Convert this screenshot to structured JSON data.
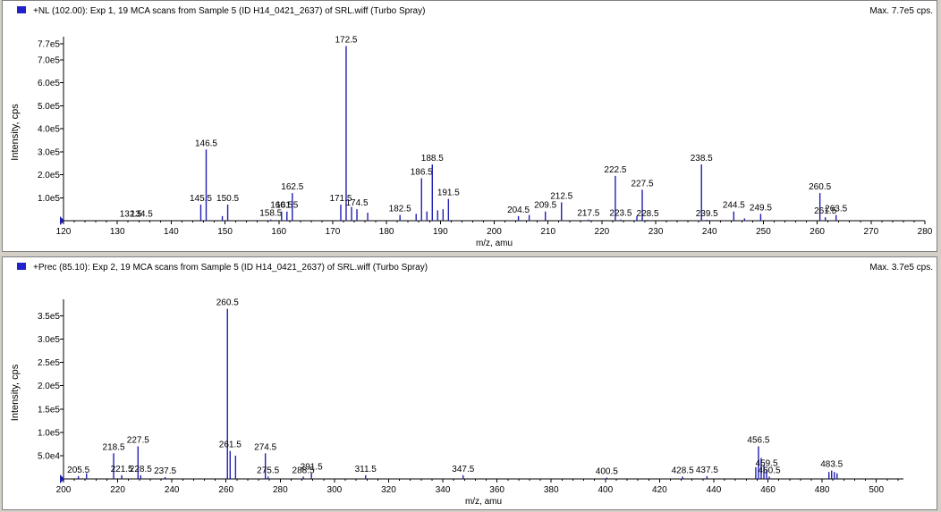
{
  "chart_data": [
    {
      "type": "bar",
      "title": "+NL (102.00): Exp 1, 19 MCA scans from Sample 5 (ID H14_0421_2637) of SRL.wiff (Turbo Spray)",
      "max_label": "Max. 7.7e5 cps.",
      "xlabel": "m/z, amu",
      "ylabel": "Intensity, cps",
      "xlim": [
        120,
        280
      ],
      "ylim": [
        0,
        770000
      ],
      "x_ticks": [
        120,
        130,
        140,
        150,
        160,
        170,
        180,
        190,
        200,
        210,
        220,
        230,
        240,
        250,
        260,
        270,
        280
      ],
      "y_ticks": [
        {
          "v": 100000,
          "t": "1.0e5"
        },
        {
          "v": 200000,
          "t": "2.0e5"
        },
        {
          "v": 300000,
          "t": "3.0e5"
        },
        {
          "v": 400000,
          "t": "4.0e5"
        },
        {
          "v": 500000,
          "t": "5.0e5"
        },
        {
          "v": 600000,
          "t": "6.0e5"
        },
        {
          "v": 700000,
          "t": "7.0e5"
        },
        {
          "v": 770000,
          "t": "7.7e5"
        }
      ],
      "peaks": [
        {
          "x": 132.5,
          "y": 2000,
          "label": "132.5"
        },
        {
          "x": 134.5,
          "y": 2000,
          "label": "134.5"
        },
        {
          "x": 145.5,
          "y": 70000,
          "label": "145.5"
        },
        {
          "x": 146.5,
          "y": 310000,
          "label": "146.5"
        },
        {
          "x": 149.5,
          "y": 20000
        },
        {
          "x": 150.5,
          "y": 70000,
          "label": "150.5"
        },
        {
          "x": 158.5,
          "y": 5000,
          "label": "158.5"
        },
        {
          "x": 160.5,
          "y": 40000,
          "label": "160.5"
        },
        {
          "x": 161.5,
          "y": 40000,
          "label": "161.5"
        },
        {
          "x": 162.5,
          "y": 120000,
          "label": "162.5"
        },
        {
          "x": 171.5,
          "y": 70000,
          "label": "171.5"
        },
        {
          "x": 172.5,
          "y": 760000,
          "label": "172.5"
        },
        {
          "x": 173.5,
          "y": 60000
        },
        {
          "x": 174.5,
          "y": 50000,
          "label": "174.5"
        },
        {
          "x": 176.5,
          "y": 35000
        },
        {
          "x": 182.5,
          "y": 25000,
          "label": "182.5"
        },
        {
          "x": 185.5,
          "y": 30000
        },
        {
          "x": 186.5,
          "y": 185000,
          "label": "186.5"
        },
        {
          "x": 187.5,
          "y": 40000
        },
        {
          "x": 188.5,
          "y": 245000,
          "label": "188.5"
        },
        {
          "x": 189.5,
          "y": 45000
        },
        {
          "x": 190.5,
          "y": 50000
        },
        {
          "x": 191.5,
          "y": 95000,
          "label": "191.5"
        },
        {
          "x": 204.5,
          "y": 20000,
          "label": "204.5"
        },
        {
          "x": 206.5,
          "y": 25000
        },
        {
          "x": 209.5,
          "y": 40000,
          "label": "209.5"
        },
        {
          "x": 212.5,
          "y": 80000,
          "label": "212.5"
        },
        {
          "x": 217.5,
          "y": 5000,
          "label": "217.5"
        },
        {
          "x": 222.5,
          "y": 195000,
          "label": "222.5"
        },
        {
          "x": 223.5,
          "y": 5000,
          "label": "223.5"
        },
        {
          "x": 226.5,
          "y": 20000
        },
        {
          "x": 227.5,
          "y": 135000,
          "label": "227.5"
        },
        {
          "x": 228.5,
          "y": 4000,
          "label": "228.5"
        },
        {
          "x": 238.5,
          "y": 245000,
          "label": "238.5"
        },
        {
          "x": 239.5,
          "y": 4000,
          "label": "239.5"
        },
        {
          "x": 244.5,
          "y": 40000,
          "label": "244.5"
        },
        {
          "x": 246.5,
          "y": 10000
        },
        {
          "x": 249.5,
          "y": 30000,
          "label": "249.5"
        },
        {
          "x": 260.5,
          "y": 120000,
          "label": "260.5"
        },
        {
          "x": 261.5,
          "y": 15000,
          "label": "261.5"
        },
        {
          "x": 263.5,
          "y": 25000,
          "label": "263.5"
        }
      ]
    },
    {
      "type": "bar",
      "title": "+Prec (85.10): Exp 2, 19 MCA scans from Sample 5 (ID H14_0421_2637) of SRL.wiff (Turbo Spray)",
      "max_label": "Max. 3.7e5 cps.",
      "xlabel": "m/z, amu",
      "ylabel": "Intensity, cps",
      "xlim": [
        200,
        510
      ],
      "ylim": [
        0,
        370000
      ],
      "x_ticks": [
        200,
        220,
        240,
        260,
        280,
        300,
        320,
        340,
        360,
        380,
        400,
        420,
        440,
        460,
        480,
        500
      ],
      "y_ticks": [
        {
          "v": 50000,
          "t": "5.0e4"
        },
        {
          "v": 100000,
          "t": "1.0e5"
        },
        {
          "v": 150000,
          "t": "1.5e5"
        },
        {
          "v": 200000,
          "t": "2.0e5"
        },
        {
          "v": 250000,
          "t": "2.5e5"
        },
        {
          "v": 300000,
          "t": "3.0e5"
        },
        {
          "v": 350000,
          "t": "3.5e5"
        }
      ],
      "peaks": [
        {
          "x": 205.5,
          "y": 6000,
          "label": "205.5"
        },
        {
          "x": 208.5,
          "y": 12000
        },
        {
          "x": 218.5,
          "y": 55000,
          "label": "218.5"
        },
        {
          "x": 221.5,
          "y": 8000,
          "label": "221.5"
        },
        {
          "x": 227.5,
          "y": 70000,
          "label": "227.5"
        },
        {
          "x": 228.5,
          "y": 8000,
          "label": "228.5"
        },
        {
          "x": 237.5,
          "y": 4000,
          "label": "237.5"
        },
        {
          "x": 260.5,
          "y": 365000,
          "label": "260.5"
        },
        {
          "x": 261.5,
          "y": 60000,
          "label": "261.5"
        },
        {
          "x": 263.5,
          "y": 50000
        },
        {
          "x": 274.5,
          "y": 55000,
          "label": "274.5"
        },
        {
          "x": 275.5,
          "y": 5000,
          "label": "275.5"
        },
        {
          "x": 288.5,
          "y": 5000,
          "label": "288.5"
        },
        {
          "x": 291.5,
          "y": 12000,
          "label": "291.5"
        },
        {
          "x": 311.5,
          "y": 8000,
          "label": "311.5"
        },
        {
          "x": 347.5,
          "y": 8000,
          "label": "347.5"
        },
        {
          "x": 400.5,
          "y": 3000,
          "label": "400.5"
        },
        {
          "x": 428.5,
          "y": 5000,
          "label": "428.5"
        },
        {
          "x": 437.5,
          "y": 6000,
          "label": "437.5"
        },
        {
          "x": 455.5,
          "y": 25000
        },
        {
          "x": 456.5,
          "y": 70000,
          "label": "456.5"
        },
        {
          "x": 457.5,
          "y": 45000
        },
        {
          "x": 458.5,
          "y": 30000
        },
        {
          "x": 459.5,
          "y": 20000,
          "label": "459.5"
        },
        {
          "x": 460.5,
          "y": 5000,
          "label": "460.5"
        },
        {
          "x": 482.5,
          "y": 15000
        },
        {
          "x": 483.5,
          "y": 18000,
          "label": "483.5"
        },
        {
          "x": 484.5,
          "y": 15000
        },
        {
          "x": 485.5,
          "y": 12000
        }
      ]
    }
  ],
  "colors": {
    "series": "#1f1fb4",
    "marker": "#2222cc"
  }
}
